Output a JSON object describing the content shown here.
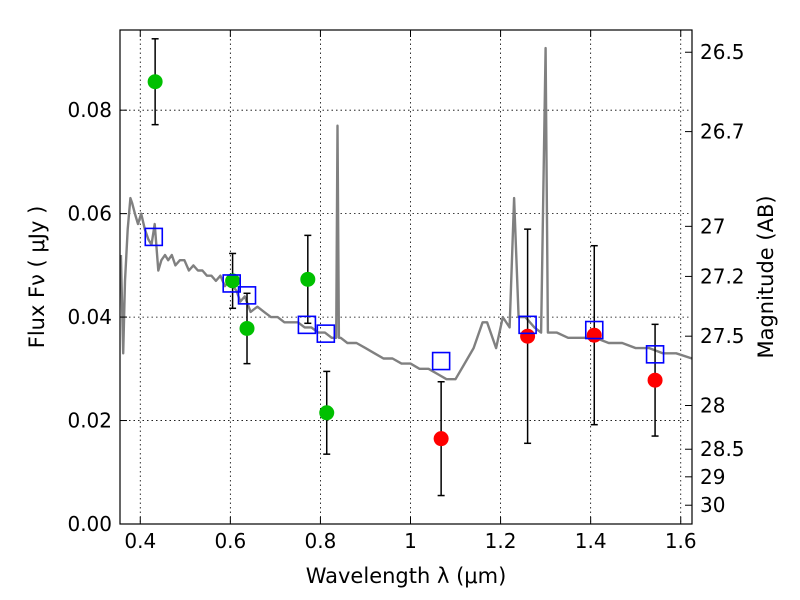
{
  "chart_data": {
    "type": "scatter",
    "xlabel": "Wavelength  λ (μm)",
    "ylabel": "Flux  Fν  ( μJy )",
    "y2label": "Magnitude (AB)",
    "xlim": [
      0.355,
      1.625
    ],
    "ylim": [
      0.0,
      0.0955
    ],
    "grid": true,
    "x_ticks": [
      {
        "value": 0.4,
        "label": "0.4"
      },
      {
        "value": 0.6,
        "label": "0.6"
      },
      {
        "value": 0.8,
        "label": "0.8"
      },
      {
        "value": 1.0,
        "label": "1"
      },
      {
        "value": 1.2,
        "label": "1.2"
      },
      {
        "value": 1.4,
        "label": "1.4"
      },
      {
        "value": 1.6,
        "label": "1.6"
      }
    ],
    "y_ticks": [
      {
        "value": 0.0,
        "label": "0.00"
      },
      {
        "value": 0.02,
        "label": "0.02"
      },
      {
        "value": 0.04,
        "label": "0.04"
      },
      {
        "value": 0.06,
        "label": "0.06"
      },
      {
        "value": 0.08,
        "label": "0.08"
      }
    ],
    "mag_ticks": [
      {
        "value": 26.5,
        "label": "26.5"
      },
      {
        "value": 26.7,
        "label": "26.7"
      },
      {
        "value": 27.0,
        "label": "27"
      },
      {
        "value": 27.2,
        "label": "27.2"
      },
      {
        "value": 27.5,
        "label": "27.5"
      },
      {
        "value": 28.0,
        "label": "28"
      },
      {
        "value": 28.5,
        "label": "28.5"
      },
      {
        "value": 29.0,
        "label": "29"
      },
      {
        "value": 30.0,
        "label": "30"
      }
    ],
    "series": [
      {
        "kind": "model_spectrum",
        "color": "#808080",
        "x": [
          0.357,
          0.362,
          0.366,
          0.372,
          0.378,
          0.382,
          0.388,
          0.395,
          0.402,
          0.41,
          0.418,
          0.425,
          0.432,
          0.44,
          0.447,
          0.455,
          0.462,
          0.47,
          0.478,
          0.488,
          0.498,
          0.508,
          0.518,
          0.528,
          0.538,
          0.548,
          0.558,
          0.568,
          0.578,
          0.588,
          0.598,
          0.606,
          0.614,
          0.622,
          0.632,
          0.645,
          0.66,
          0.675,
          0.69,
          0.705,
          0.72,
          0.735,
          0.75,
          0.765,
          0.78,
          0.795,
          0.81,
          0.825,
          0.835,
          0.838,
          0.841,
          0.845,
          0.86,
          0.88,
          0.9,
          0.92,
          0.94,
          0.96,
          0.98,
          1.0,
          1.02,
          1.04,
          1.06,
          1.08,
          1.1,
          1.12,
          1.14,
          1.16,
          1.17,
          1.19,
          1.205,
          1.22,
          1.23,
          1.24,
          1.255,
          1.275,
          1.29,
          1.3,
          1.305,
          1.31,
          1.325,
          1.35,
          1.38,
          1.41,
          1.44,
          1.47,
          1.5,
          1.53,
          1.56,
          1.59,
          1.625
        ],
        "y": [
          0.052,
          0.033,
          0.047,
          0.057,
          0.063,
          0.062,
          0.06,
          0.058,
          0.06,
          0.057,
          0.055,
          0.054,
          0.058,
          0.049,
          0.051,
          0.052,
          0.051,
          0.052,
          0.05,
          0.051,
          0.051,
          0.049,
          0.05,
          0.049,
          0.049,
          0.048,
          0.048,
          0.047,
          0.048,
          0.046,
          0.047,
          0.046,
          0.045,
          0.043,
          0.044,
          0.041,
          0.042,
          0.041,
          0.04,
          0.04,
          0.039,
          0.039,
          0.039,
          0.038,
          0.038,
          0.037,
          0.037,
          0.036,
          0.036,
          0.077,
          0.036,
          0.036,
          0.035,
          0.035,
          0.034,
          0.033,
          0.032,
          0.032,
          0.031,
          0.031,
          0.03,
          0.03,
          0.029,
          0.028,
          0.028,
          0.031,
          0.034,
          0.039,
          0.039,
          0.034,
          0.04,
          0.038,
          0.063,
          0.04,
          0.04,
          0.038,
          0.037,
          0.092,
          0.037,
          0.037,
          0.037,
          0.036,
          0.036,
          0.036,
          0.035,
          0.035,
          0.034,
          0.034,
          0.033,
          0.033,
          0.032
        ]
      },
      {
        "kind": "detections",
        "color": "#00c000",
        "points": [
          {
            "x": 0.433,
            "y": 0.0855,
            "yerr": 0.0083
          },
          {
            "x": 0.605,
            "y": 0.047,
            "yerr": 0.0053
          },
          {
            "x": 0.637,
            "y": 0.0378,
            "yerr": 0.0068
          },
          {
            "x": 0.772,
            "y": 0.0473,
            "yerr": 0.0085
          },
          {
            "x": 0.814,
            "y": 0.0215,
            "yerr": 0.008
          }
        ]
      },
      {
        "kind": "upper_limits",
        "color": "#ff0000",
        "points": [
          {
            "x": 1.068,
            "y": 0.0165,
            "yerr": 0.011
          },
          {
            "x": 1.26,
            "y": 0.0363,
            "yerr": 0.0207
          },
          {
            "x": 1.408,
            "y": 0.0365,
            "yerr": 0.0173
          },
          {
            "x": 1.543,
            "y": 0.0278,
            "yerr": 0.0108
          }
        ]
      },
      {
        "kind": "model_photometry",
        "color": "#0000ff",
        "points": [
          {
            "x": 0.43,
            "y": 0.0555
          },
          {
            "x": 0.603,
            "y": 0.0465
          },
          {
            "x": 0.637,
            "y": 0.0442
          },
          {
            "x": 0.77,
            "y": 0.0385
          },
          {
            "x": 0.812,
            "y": 0.0368
          },
          {
            "x": 1.068,
            "y": 0.0315
          },
          {
            "x": 1.26,
            "y": 0.0385
          },
          {
            "x": 1.408,
            "y": 0.0375
          },
          {
            "x": 1.543,
            "y": 0.0328
          }
        ]
      }
    ]
  }
}
